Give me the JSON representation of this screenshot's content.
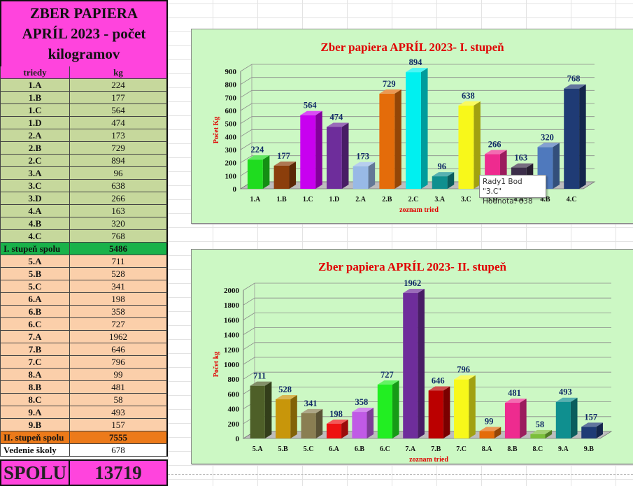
{
  "table": {
    "title_lines": [
      "ZBER PAPIERA",
      "APRÍL 2023 - počet",
      "kilogramov"
    ],
    "header": {
      "col1": "triedy",
      "col2": "kg"
    },
    "group1": [
      {
        "class": "1.A",
        "kg": "224"
      },
      {
        "class": "1.B",
        "kg": "177"
      },
      {
        "class": "1.C",
        "kg": "564"
      },
      {
        "class": "1.D",
        "kg": "474"
      },
      {
        "class": "2.A",
        "kg": "173"
      },
      {
        "class": "2.B",
        "kg": "729"
      },
      {
        "class": "2.C",
        "kg": "894"
      },
      {
        "class": "3.A",
        "kg": "96"
      },
      {
        "class": "3.C",
        "kg": "638"
      },
      {
        "class": "3.D",
        "kg": "266"
      },
      {
        "class": "4.A",
        "kg": "163"
      },
      {
        "class": "4.B",
        "kg": "320"
      },
      {
        "class": "4.C",
        "kg": "768"
      }
    ],
    "sum1": {
      "label": "I. stupeň spolu",
      "kg": "5486"
    },
    "group2": [
      {
        "class": "5.A",
        "kg": "711"
      },
      {
        "class": "5.B",
        "kg": "528"
      },
      {
        "class": "5.C",
        "kg": "341"
      },
      {
        "class": "6.A",
        "kg": "198"
      },
      {
        "class": "6.B",
        "kg": "358"
      },
      {
        "class": "6.C",
        "kg": "727"
      },
      {
        "class": "7.A",
        "kg": "1962"
      },
      {
        "class": "7.B",
        "kg": "646"
      },
      {
        "class": "7.C",
        "kg": "796"
      },
      {
        "class": "8.A",
        "kg": "99"
      },
      {
        "class": "8.B",
        "kg": "481"
      },
      {
        "class": "8.C",
        "kg": "58"
      },
      {
        "class": "9.A",
        "kg": "493"
      },
      {
        "class": "9.B",
        "kg": "157"
      }
    ],
    "sum2": {
      "label": "II. stupeň spolu",
      "kg": "7555"
    },
    "vedenie": {
      "label": "Vedenie školy",
      "kg": "678"
    },
    "total": {
      "label": "SPOLU",
      "kg": "13719"
    }
  },
  "tooltip": {
    "line1": "Rady1 Bod \"3.C\"",
    "line2": "Hodnota: 638"
  },
  "chart_data": [
    {
      "type": "bar",
      "title": "Zber papiera APRÍL 2023- I. stupeň",
      "xlabel": "zoznam tried",
      "ylabel": "Počet Kg",
      "ylim": [
        0,
        900
      ],
      "yticks": [
        0,
        100,
        200,
        300,
        400,
        500,
        600,
        700,
        800,
        900
      ],
      "grid": true,
      "categories": [
        "1.A",
        "1.B",
        "1.C",
        "1.D",
        "2.A",
        "2.B",
        "2.C",
        "3.A",
        "3.C",
        "3.D",
        "4.A",
        "4.B",
        "4.C"
      ],
      "values": [
        224,
        177,
        564,
        474,
        173,
        729,
        894,
        96,
        638,
        266,
        163,
        320,
        768
      ],
      "colors": [
        "#1fdc1f",
        "#8b3e0b",
        "#c800f0",
        "#6e2d9b",
        "#98b9e6",
        "#e46c0a",
        "#00f0f0",
        "#0f8f8f",
        "#f8f81a",
        "#ee2b8f",
        "#3c2e4a",
        "#4f79bd",
        "#1f3b75"
      ]
    },
    {
      "type": "bar",
      "title": "Zber papiera APRÍL 2023- II. stupeň",
      "xlabel": "zoznam tried",
      "ylabel": "Počet kg",
      "ylim": [
        0,
        2000
      ],
      "yticks": [
        0,
        200,
        400,
        600,
        800,
        1000,
        1200,
        1400,
        1600,
        1800,
        2000
      ],
      "grid": true,
      "categories": [
        "5.A",
        "5.B",
        "5.C",
        "6.A",
        "6.B",
        "6.C",
        "7.A",
        "7.B",
        "7.C",
        "8.A",
        "8.B",
        "8.C",
        "9.A",
        "9.B"
      ],
      "values": [
        711,
        528,
        341,
        198,
        358,
        727,
        1962,
        646,
        796,
        99,
        481,
        58,
        493,
        157
      ],
      "colors": [
        "#4e5f28",
        "#c8960a",
        "#8a7e52",
        "#ee1111",
        "#c05ae6",
        "#22ee22",
        "#6e2d9b",
        "#bb0000",
        "#f8f81a",
        "#e46c0a",
        "#ee2b8f",
        "#7bbf3a",
        "#0f8f8f",
        "#1f3b75"
      ]
    }
  ]
}
